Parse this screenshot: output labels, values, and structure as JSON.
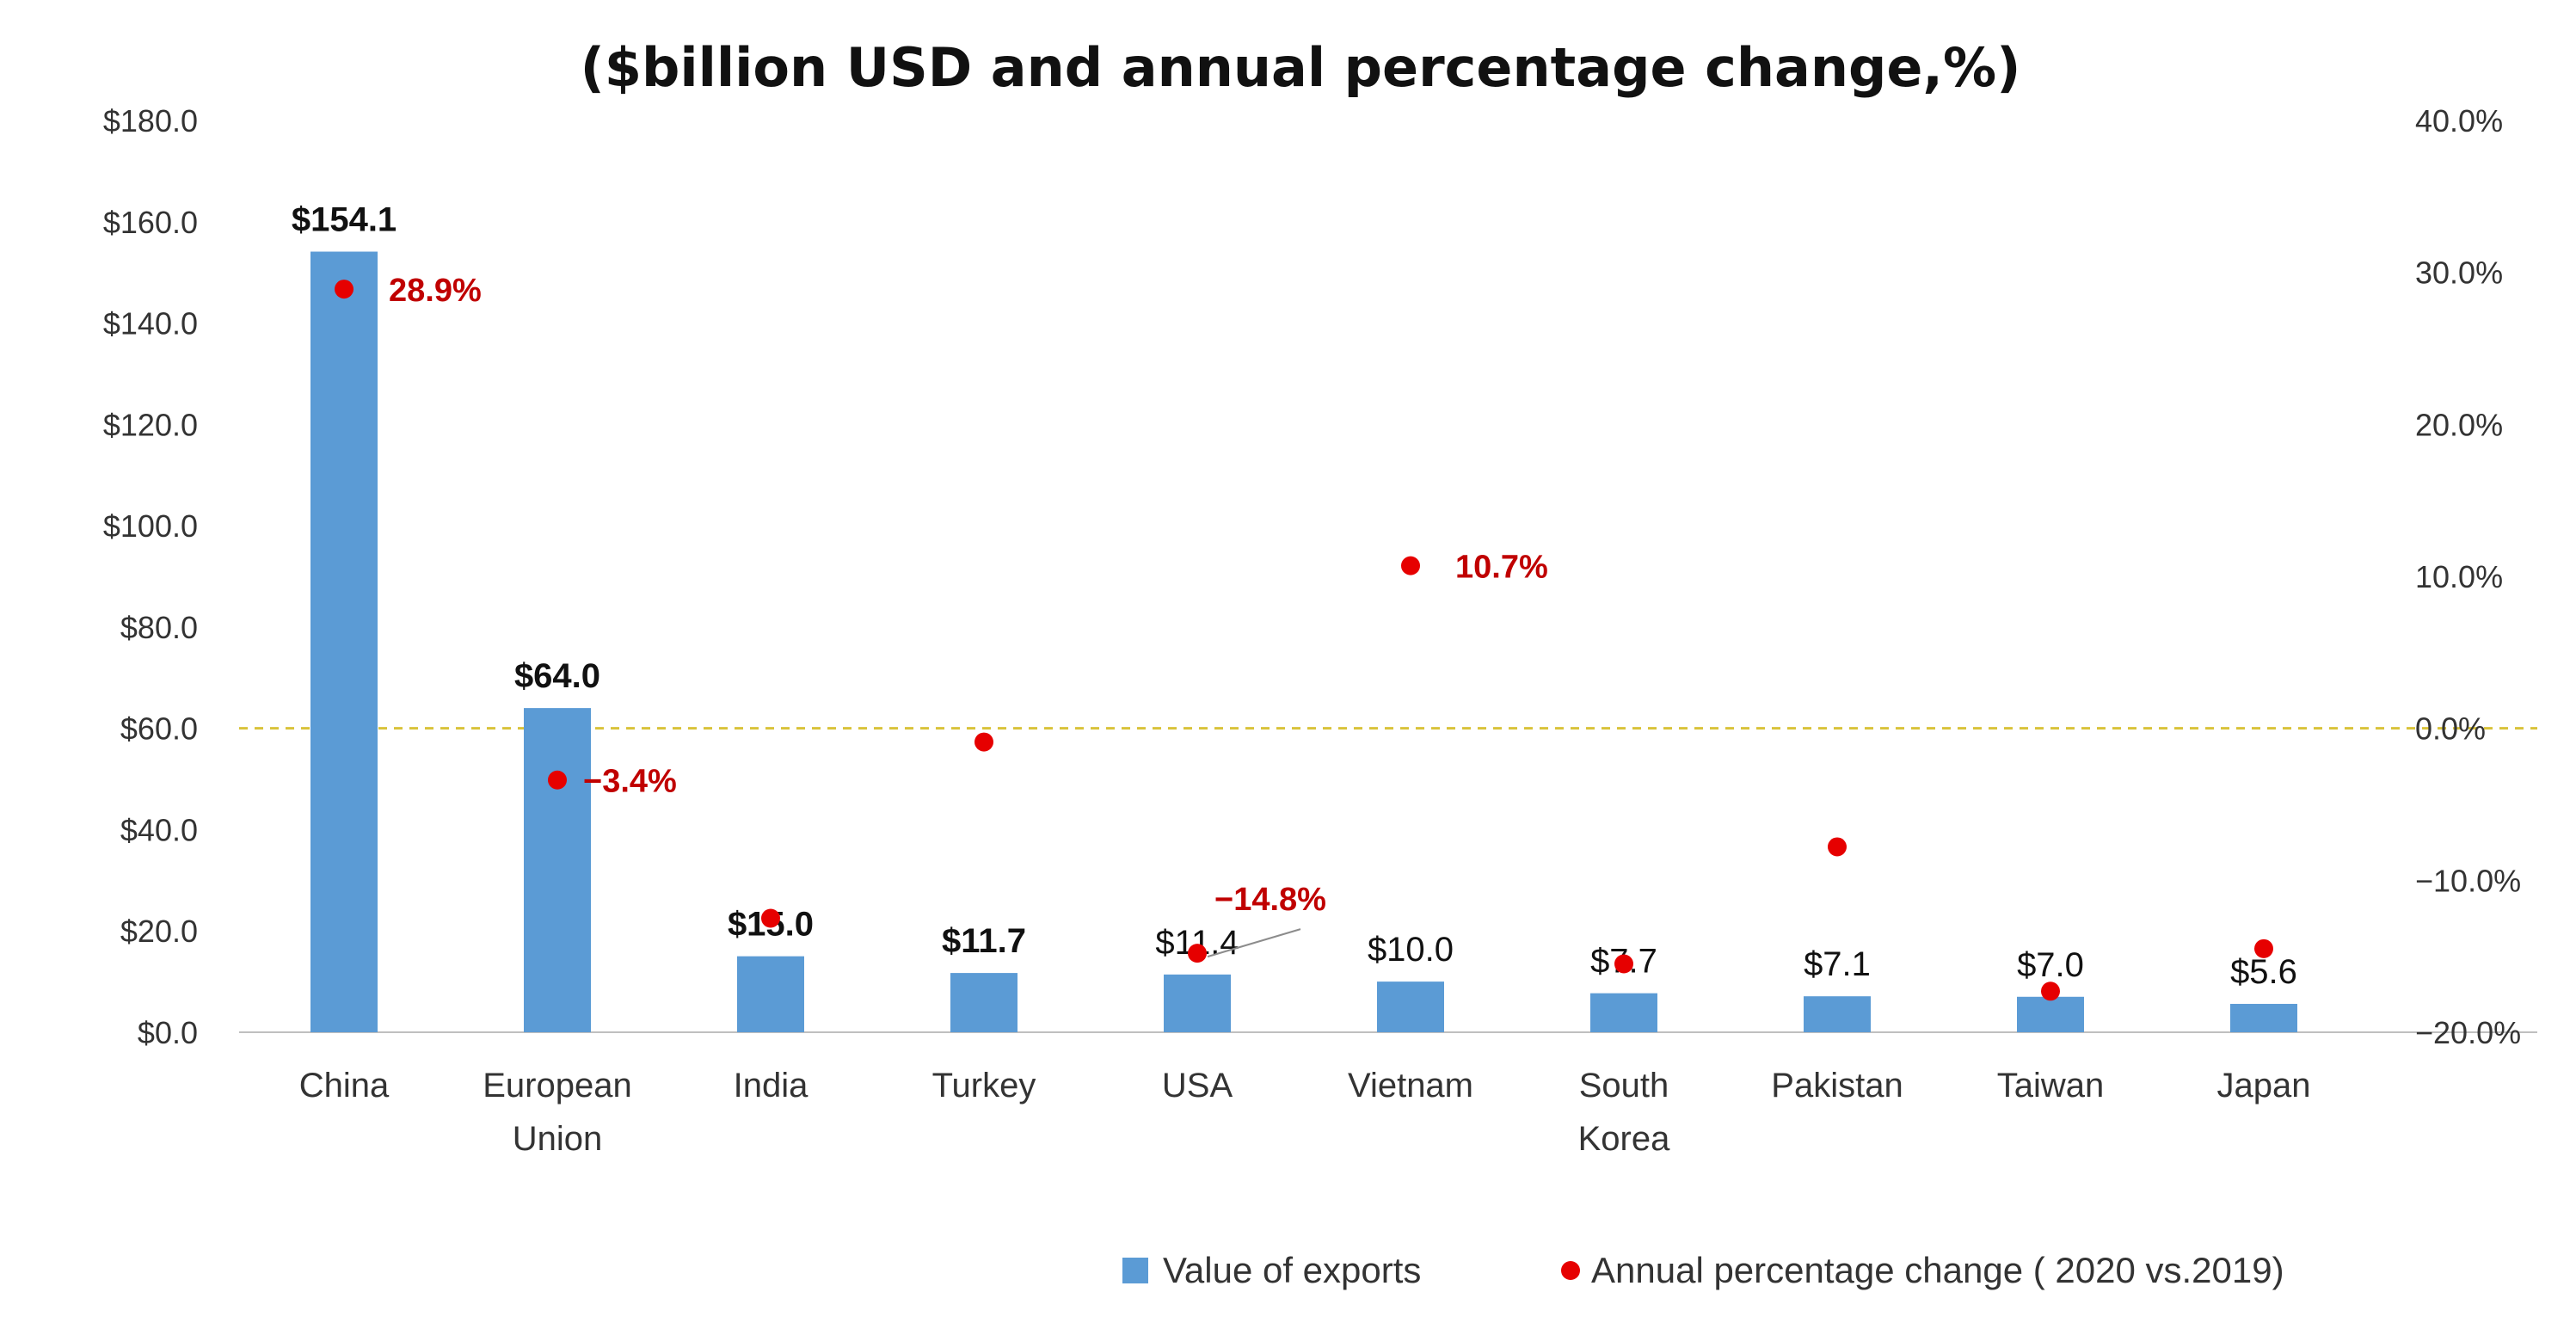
{
  "chart_data": {
    "type": "bar",
    "title": "($billion USD and annual percentage change,%)",
    "categories": [
      [
        "China"
      ],
      [
        "European",
        "Union"
      ],
      [
        "India"
      ],
      [
        "Turkey"
      ],
      [
        "USA"
      ],
      [
        "Vietnam"
      ],
      [
        "South",
        "Korea"
      ],
      [
        "Pakistan"
      ],
      [
        "Taiwan"
      ],
      [
        "Japan"
      ]
    ],
    "series": [
      {
        "name": "Value of exports",
        "axis": "left",
        "kind": "bar",
        "values": [
          154.1,
          64.0,
          15.0,
          11.7,
          11.4,
          10.0,
          7.7,
          7.1,
          7.0,
          5.6
        ],
        "labels": [
          "$154.1",
          "$64.0",
          "$15.0",
          "$11.7",
          "$11.4",
          "$10.0",
          "$7.7",
          "$7.1",
          "$7.0",
          "$5.6"
        ],
        "bold_labels": [
          true,
          true,
          true,
          true,
          false,
          false,
          false,
          false,
          false,
          false
        ]
      },
      {
        "name": "Annual percentage change ( 2020 vs.2019)",
        "axis": "right",
        "kind": "scatter",
        "values": [
          28.9,
          -3.4,
          -12.5,
          -0.9,
          -14.8,
          10.7,
          -15.5,
          -7.8,
          -17.3,
          -14.5
        ],
        "labels": [
          "28.9%",
          "−3.4%",
          null,
          null,
          "−14.8%",
          "10.7%",
          null,
          null,
          null,
          null
        ]
      }
    ],
    "y_left": {
      "range": [
        0,
        180
      ],
      "ticks": [
        0,
        20,
        40,
        60,
        80,
        100,
        120,
        140,
        160,
        180
      ],
      "tick_labels": [
        "$0.0",
        "$20.0",
        "$40.0",
        "$60.0",
        "$80.0",
        "$100.0",
        "$120.0",
        "$140.0",
        "$160.0",
        "$180.0"
      ]
    },
    "y_right": {
      "range": [
        -20,
        40
      ],
      "ticks": [
        -20,
        -10,
        0,
        10,
        20,
        30,
        40
      ],
      "tick_labels": [
        "−20.0%",
        "−10.0%",
        "0.0%",
        "10.0%",
        "20.0%",
        "30.0%",
        "40.0%"
      ]
    },
    "reference_line": {
      "axis": "right",
      "value": 0,
      "style": "dashed"
    },
    "grid": false,
    "legend": {
      "position": "bottom-right"
    },
    "colors": {
      "bar": "#5b9bd5",
      "point": "#e60000",
      "point_label": "#c00000",
      "reference_line": "#d9c33a",
      "axis": "#bfbfbf"
    }
  }
}
